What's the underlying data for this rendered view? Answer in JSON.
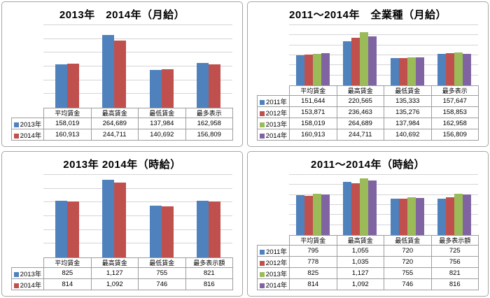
{
  "palette": {
    "series_blue": "#4F81BD",
    "series_red": "#C0504D",
    "series_green": "#9BBB59",
    "series_purple": "#8064A2",
    "gridline": "#d5d5d5",
    "panel_border": "#a6a6a6",
    "table_border": "#9d9d9d",
    "title_text": "#000000"
  },
  "chart_data": [
    {
      "type": "bar",
      "title": "2013年　2014年（月給）",
      "categories": [
        "平均賃金",
        "最高賃金",
        "最低賃金",
        "最多表示"
      ],
      "series": [
        {
          "name": "2013年",
          "color": "#4F81BD",
          "values": [
            158019,
            264689,
            137984,
            162958
          ]
        },
        {
          "name": "2014年",
          "color": "#C0504D",
          "values": [
            160913,
            244711,
            140692,
            156809
          ]
        }
      ],
      "ylim": [
        0,
        300000
      ],
      "gridline_step": 50000,
      "grid": true,
      "y_axis_labels_visible": false,
      "legend_position": "data-table-left-column",
      "value_format": "#,##0"
    },
    {
      "type": "bar",
      "title": "2011～2014年　全業種（月給）",
      "categories": [
        "平均賃金",
        "最高賃金",
        "最低賃金",
        "最多表示"
      ],
      "series": [
        {
          "name": "2011年",
          "color": "#4F81BD",
          "values": [
            151644,
            220565,
            135333,
            157647
          ]
        },
        {
          "name": "2012年",
          "color": "#C0504D",
          "values": [
            153871,
            236463,
            135276,
            158853
          ]
        },
        {
          "name": "2013年",
          "color": "#9BBB59",
          "values": [
            158019,
            264689,
            137984,
            162958
          ]
        },
        {
          "name": "2014年",
          "color": "#8064A2",
          "values": [
            160913,
            244711,
            140692,
            156809
          ]
        }
      ],
      "ylim": [
        0,
        300000
      ],
      "gridline_step": 50000,
      "grid": true,
      "y_axis_labels_visible": false,
      "legend_position": "data-table-left-column",
      "value_format": "#,##0"
    },
    {
      "type": "bar",
      "title": "2013年 2014年（時給）",
      "categories": [
        "平均賃金",
        "最高賃金",
        "最低賃金",
        "最多表示額"
      ],
      "series": [
        {
          "name": "2013年",
          "color": "#4F81BD",
          "values": [
            825,
            1127,
            755,
            821
          ]
        },
        {
          "name": "2014年",
          "color": "#C0504D",
          "values": [
            814,
            1092,
            746,
            816
          ]
        }
      ],
      "ylim": [
        0,
        1200
      ],
      "gridline_step": 200,
      "grid": true,
      "y_axis_labels_visible": false,
      "legend_position": "data-table-left-column",
      "value_format": "#,##0"
    },
    {
      "type": "bar",
      "title": "2011～2014年（時給）",
      "categories": [
        "平均賃金",
        "最高賃金",
        "最低賃金",
        "最多表示額"
      ],
      "series": [
        {
          "name": "2011年",
          "color": "#4F81BD",
          "values": [
            795,
            1055,
            720,
            725
          ]
        },
        {
          "name": "2012年",
          "color": "#C0504D",
          "values": [
            778,
            1035,
            720,
            756
          ]
        },
        {
          "name": "2013年",
          "color": "#9BBB59",
          "values": [
            825,
            1127,
            755,
            821
          ]
        },
        {
          "name": "2014年",
          "color": "#8064A2",
          "values": [
            814,
            1092,
            746,
            816
          ]
        }
      ],
      "ylim": [
        0,
        1200
      ],
      "gridline_step": 200,
      "grid": true,
      "y_axis_labels_visible": false,
      "legend_position": "data-table-left-column",
      "value_format": "#,##0"
    }
  ]
}
